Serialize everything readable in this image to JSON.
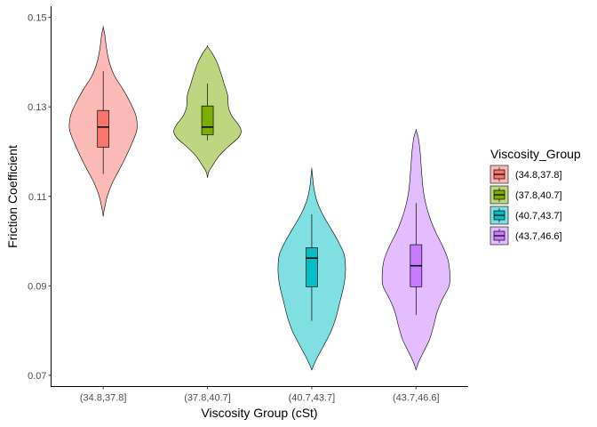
{
  "chart_data": {
    "type": "violin",
    "title": "",
    "xlabel": "Viscosity Group (cSt)",
    "ylabel": "Friction Coefficient",
    "ylim": [
      0.0675,
      0.1525
    ],
    "yticks": [
      0.07,
      0.09,
      0.11,
      0.13,
      0.15
    ],
    "ytick_labels": [
      "0.07",
      "0.09",
      "0.11",
      "0.13",
      "0.15"
    ],
    "grid": false,
    "legend": {
      "title": "Viscosity_Group",
      "position": "right",
      "items": [
        "(34.8,37.8]",
        "(37.8,40.7]",
        "(40.7,43.7]",
        "(43.7,46.6]"
      ]
    },
    "categories": [
      "(34.8,37.8]",
      "(37.8,40.7]",
      "(40.7,43.7]",
      "(43.7,46.6]"
    ],
    "series": [
      {
        "category": "(34.8,37.8]",
        "color": "#F8766D",
        "box": {
          "whisker_low": 0.115,
          "q1": 0.121,
          "median": 0.1255,
          "q3": 0.1292,
          "whisker_high": 0.138
        },
        "density": [
          [
            0.1055,
            0.0
          ],
          [
            0.107,
            0.03
          ],
          [
            0.11,
            0.12
          ],
          [
            0.113,
            0.27
          ],
          [
            0.116,
            0.48
          ],
          [
            0.119,
            0.68
          ],
          [
            0.122,
            0.86
          ],
          [
            0.125,
            1.0
          ],
          [
            0.128,
            0.97
          ],
          [
            0.131,
            0.8
          ],
          [
            0.134,
            0.58
          ],
          [
            0.137,
            0.33
          ],
          [
            0.14,
            0.18
          ],
          [
            0.143,
            0.1
          ],
          [
            0.146,
            0.05
          ],
          [
            0.1478,
            0.0
          ]
        ]
      },
      {
        "category": "(37.8,40.7]",
        "color": "#7CAE00",
        "box": {
          "whisker_low": 0.1225,
          "q1": 0.1238,
          "median": 0.1255,
          "q3": 0.1302,
          "whisker_high": 0.1352
        },
        "density": [
          [
            0.1142,
            0.0
          ],
          [
            0.1155,
            0.04
          ],
          [
            0.117,
            0.16
          ],
          [
            0.119,
            0.34
          ],
          [
            0.121,
            0.6
          ],
          [
            0.123,
            0.9
          ],
          [
            0.1245,
            1.0
          ],
          [
            0.126,
            0.92
          ],
          [
            0.128,
            0.72
          ],
          [
            0.13,
            0.62
          ],
          [
            0.1325,
            0.6
          ],
          [
            0.135,
            0.5
          ],
          [
            0.1375,
            0.4
          ],
          [
            0.14,
            0.28
          ],
          [
            0.142,
            0.14
          ],
          [
            0.1435,
            0.0
          ]
        ]
      },
      {
        "category": "(40.7,43.7]",
        "color": "#00BFC4",
        "box": {
          "whisker_low": 0.0822,
          "q1": 0.0898,
          "median": 0.0962,
          "q3": 0.0985,
          "whisker_high": 0.106
        },
        "density": [
          [
            0.0712,
            0.0
          ],
          [
            0.0725,
            0.07
          ],
          [
            0.0745,
            0.2
          ],
          [
            0.077,
            0.38
          ],
          [
            0.08,
            0.58
          ],
          [
            0.083,
            0.72
          ],
          [
            0.086,
            0.82
          ],
          [
            0.089,
            0.92
          ],
          [
            0.0915,
            0.98
          ],
          [
            0.094,
            1.0
          ],
          [
            0.097,
            0.96
          ],
          [
            0.1,
            0.78
          ],
          [
            0.103,
            0.55
          ],
          [
            0.106,
            0.32
          ],
          [
            0.109,
            0.15
          ],
          [
            0.112,
            0.06
          ],
          [
            0.1148,
            0.02
          ],
          [
            0.1162,
            0.0
          ]
        ]
      },
      {
        "category": "(43.7,46.6]",
        "color": "#C77CFF",
        "box": {
          "whisker_low": 0.0835,
          "q1": 0.0898,
          "median": 0.0945,
          "q3": 0.0992,
          "whisker_high": 0.1085
        },
        "density": [
          [
            0.0712,
            0.0
          ],
          [
            0.073,
            0.08
          ],
          [
            0.0755,
            0.24
          ],
          [
            0.078,
            0.4
          ],
          [
            0.081,
            0.52
          ],
          [
            0.084,
            0.62
          ],
          [
            0.087,
            0.78
          ],
          [
            0.09,
            0.98
          ],
          [
            0.093,
            1.0
          ],
          [
            0.096,
            0.94
          ],
          [
            0.099,
            0.78
          ],
          [
            0.102,
            0.58
          ],
          [
            0.105,
            0.42
          ],
          [
            0.108,
            0.3
          ],
          [
            0.111,
            0.22
          ],
          [
            0.114,
            0.18
          ],
          [
            0.117,
            0.15
          ],
          [
            0.12,
            0.12
          ],
          [
            0.123,
            0.07
          ],
          [
            0.1248,
            0.0
          ]
        ]
      }
    ]
  }
}
